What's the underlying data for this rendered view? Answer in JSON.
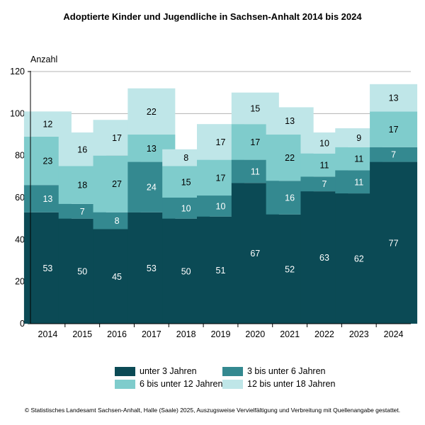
{
  "chart_data": {
    "type": "bar",
    "stacked": true,
    "title": "Adoptierte Kinder und Jugendliche in Sachsen-Anhalt 2014 bis 2024",
    "ylabel": "Anzahl",
    "xlabel": "",
    "ylim": [
      0,
      120
    ],
    "yticks": [
      0,
      20,
      40,
      60,
      80,
      100,
      120
    ],
    "grid": true,
    "legend_position": "bottom",
    "categories": [
      "2014",
      "2015",
      "2016",
      "2017",
      "2018",
      "2019",
      "2020",
      "2021",
      "2022",
      "2023",
      "2024"
    ],
    "series": [
      {
        "name": "unter 3 Jahren",
        "color": "#0b4a55",
        "values": [
          53,
          50,
          45,
          53,
          50,
          51,
          67,
          52,
          63,
          62,
          77
        ]
      },
      {
        "name": "3 bis unter 6 Jahren",
        "color": "#348990",
        "values": [
          13,
          7,
          8,
          24,
          10,
          10,
          11,
          16,
          7,
          11,
          7
        ]
      },
      {
        "name": "6 bis unter 12 Jahren",
        "color": "#7fcccc",
        "values": [
          23,
          18,
          27,
          13,
          15,
          17,
          17,
          22,
          11,
          11,
          17
        ]
      },
      {
        "name": "12 bis unter 18 Jahren",
        "color": "#bfe6e8",
        "values": [
          12,
          16,
          17,
          22,
          8,
          17,
          15,
          13,
          10,
          9,
          13
        ]
      }
    ]
  },
  "footer": "© Statistisches Landesamt Sachsen-Anhalt, Halle (Saale) 2025, Auszugsweise Vervielfältigung und Verbreitung mit Quellenangabe gestattet."
}
